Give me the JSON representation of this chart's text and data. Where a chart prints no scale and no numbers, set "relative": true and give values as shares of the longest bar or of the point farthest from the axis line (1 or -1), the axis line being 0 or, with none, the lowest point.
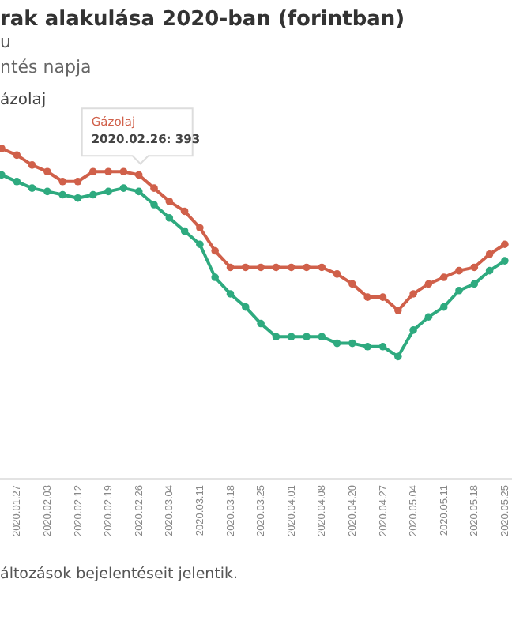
{
  "chart_data": {
    "type": "line",
    "title": "rak alakulása 2020-ban (forintban)",
    "subtitle": "u",
    "relative": true,
    "marker": "circle",
    "line_style": "solid",
    "categories": [
      null,
      "2020.01.27",
      null,
      "2020.02.03",
      null,
      "2020.02.12",
      null,
      "2020.02.19",
      null,
      "2020.02.26",
      null,
      "2020.03.04",
      null,
      "2020.03.11",
      null,
      "2020.03.18",
      null,
      "2020.03.25",
      null,
      "2020.04.01",
      null,
      "2020.04.08",
      null,
      "2020.04.20",
      null,
      "2020.04.27",
      null,
      "2020.05.04",
      null,
      "2020.05.11",
      null,
      "2020.05.18",
      null,
      "2020.05.25"
    ],
    "series": [
      {
        "color": "#d0604a",
        "values": [
          1.0,
          0.98,
          0.95,
          0.93,
          0.9,
          0.9,
          0.93,
          0.93,
          0.93,
          0.92,
          0.88,
          0.84,
          0.81,
          0.76,
          0.69,
          0.64,
          0.64,
          0.64,
          0.64,
          0.64,
          0.64,
          0.64,
          0.62,
          0.59,
          0.55,
          0.55,
          0.51,
          0.56,
          0.59,
          0.61,
          0.63,
          0.64,
          0.68,
          0.71
        ]
      },
      {
        "color": "#2eaa7f",
        "values": [
          0.92,
          0.9,
          0.88,
          0.87,
          0.86,
          0.85,
          0.86,
          0.87,
          0.88,
          0.87,
          0.83,
          0.79,
          0.75,
          0.71,
          0.61,
          0.56,
          0.52,
          0.47,
          0.43,
          0.43,
          0.43,
          0.43,
          0.41,
          0.41,
          0.4,
          0.4,
          0.37,
          0.45,
          0.49,
          0.52,
          0.57,
          0.59,
          0.63,
          0.66
        ]
      }
    ],
    "annotations": [
      "ntés napja",
      "ázolaj",
      {
        "text": "Gázolaj\n2020.02.26: 393",
        "x": "2020.02.26",
        "y": 0.93
      },
      "áltozások bejelentéseit jelentik."
    ]
  }
}
